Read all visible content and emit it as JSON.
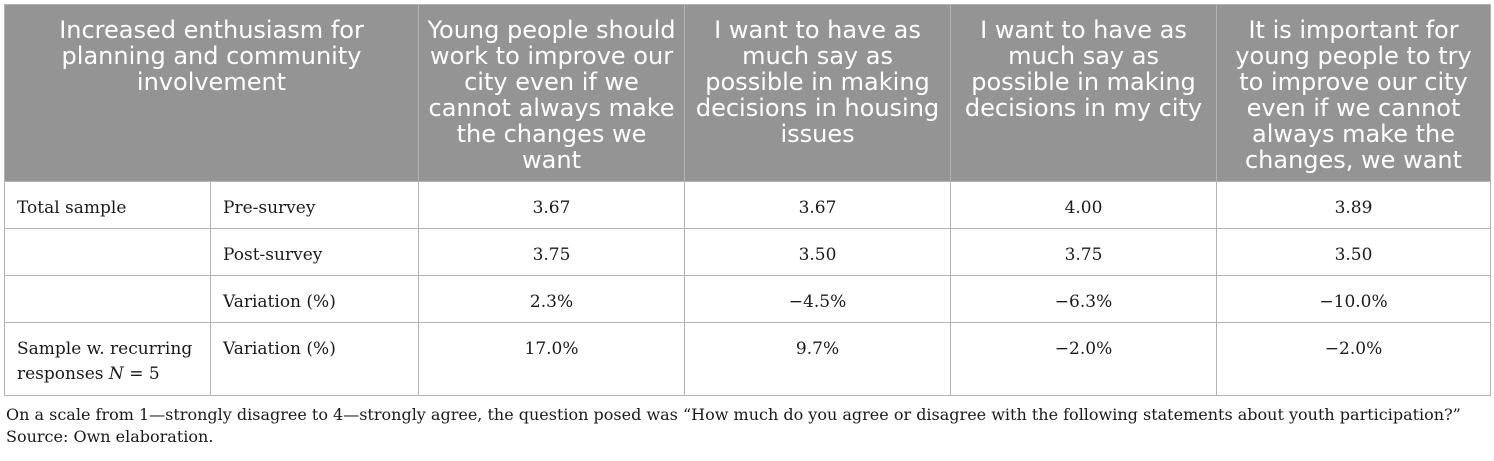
{
  "table": {
    "headers": [
      "Increased enthusiasm for planning and community involvement",
      "Young people should work to improve our city even if we cannot always make the changes we want",
      "I want to have as much say as possible in making decisions in housing issues",
      "I want to have as much say as possible in making decisions in my city",
      "It is important for young people to try to improve our city even if we cannot always make the changes, we want"
    ],
    "rows": [
      {
        "group": "Total sample",
        "measure": "Pre-survey",
        "values": [
          "3.67",
          "3.67",
          "4.00",
          "3.89"
        ]
      },
      {
        "group": "",
        "measure": "Post-survey",
        "values": [
          "3.75",
          "3.50",
          "3.75",
          "3.50"
        ]
      },
      {
        "group": "",
        "measure": "Variation (%)",
        "values": [
          "2.3%",
          "−4.5%",
          "−6.3%",
          "−10.0%"
        ]
      },
      {
        "group": "Sample w. recurring responses",
        "group_n_label": "N",
        "group_n_value": "= 5",
        "measure": "Variation (%)",
        "values": [
          "17.0%",
          "9.7%",
          "−2.0%",
          "−2.0%"
        ]
      }
    ]
  },
  "notes": {
    "scale_note": "On a scale from 1—strongly disagree to 4—strongly agree, the question posed was “How much do you agree or disagree with the following statements about youth participation?”",
    "source": "Source: Own elaboration."
  }
}
